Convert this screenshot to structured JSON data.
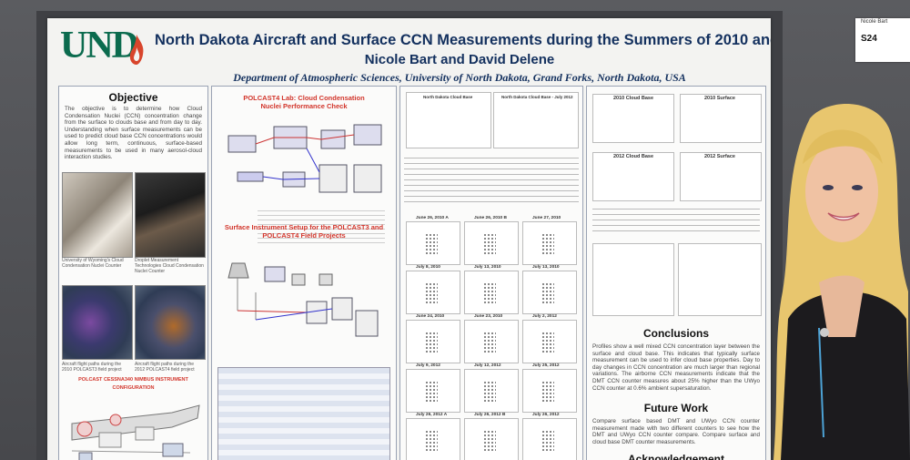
{
  "poster": {
    "logo_text": "UND",
    "title": "North Dakota Aircraft and Surface CCN Measurements during the Summers of 2010 and 2012",
    "authors": "Nicole Bart and David Delene",
    "department": "Department of Atmospheric Sciences, University of North Dakota, Grand Forks, North Dakota, USA"
  },
  "column1": {
    "heading": "Objective",
    "body": "The objective is to determine how Cloud Condensation Nuclei (CCN) concentration change from the surface to clouds base and from day to day. Understanding when surface measurements can be used to predict cloud base CCN concentrations would allow long term, continuous, surface-based measurements to be used in many aerosol-cloud interaction studies.",
    "captions": [
      "University of Wyoming's Cloud Condensation Nuclei Counter",
      "Droplet Measurement Technologies Cloud Condensation Nuclei Counter",
      "Aircraft flight paths during the 2010 POLCAST3 field project",
      "Aircraft flight paths during the 2012 POLCAST4 field project"
    ],
    "bottom_heading": "POLCAST CESSNA340 NIMBUS INSTRUMENT CONFIGURATION"
  },
  "column2": {
    "heading1": "POLCAST4 Lab: Cloud Condensation Nuclei Performance Check",
    "heading2": "Surface Instrument Setup for the POLCAST3 and POLCAST4 Field Projects"
  },
  "column3": {
    "chart_titles": [
      "North Dakota Cloud Base",
      "North Dakota Cloud Base - July 2012"
    ],
    "grid_labels": [
      "June 26, 2010 A",
      "June 26, 2010 B",
      "June 27, 2010",
      "July 8, 2010",
      "July 13, 2010",
      "July 13, 2010",
      "June 24, 2010",
      "June 23, 2010",
      "July 2, 2012",
      "July 9, 2012",
      "July 12, 2012",
      "July 25, 2012",
      "July 26, 2012 A",
      "July 26, 2012 B",
      "July 26, 2012"
    ]
  },
  "column4": {
    "chart_titles": [
      "2010 Cloud Base",
      "2010 Surface",
      "2012 Cloud Base",
      "2012 Surface"
    ],
    "heading_conclusions": "Conclusions",
    "conclusions": "Profiles show a well mixed CCN concentration layer between the surface and cloud base. This indicates that typically surface measurement can be used to infer cloud base properties. Day to day changes in CCN concentration are much larger than regional variations. The airborne CCN measurements indicate that the DMT CCN counter measures about 25% higher than the UWyo CCN counter at 0.6% ambient supersaturation.",
    "heading_future": "Future Work",
    "future": "Compare surface based DMT and UWyo CCN counter measurement made with two different counters to see how the DMT and UWyo CCN counter compare. Compare surface and cloud base DMT counter measurements.",
    "heading_ack": "Acknowledgement"
  },
  "board_tag": {
    "name": "Nicole Bart",
    "id": "S24"
  },
  "colors": {
    "title": "#13305e",
    "red_heading": "#d2352b",
    "logo_green": "#0b6b4e",
    "logo_flame": "#d8452c"
  }
}
